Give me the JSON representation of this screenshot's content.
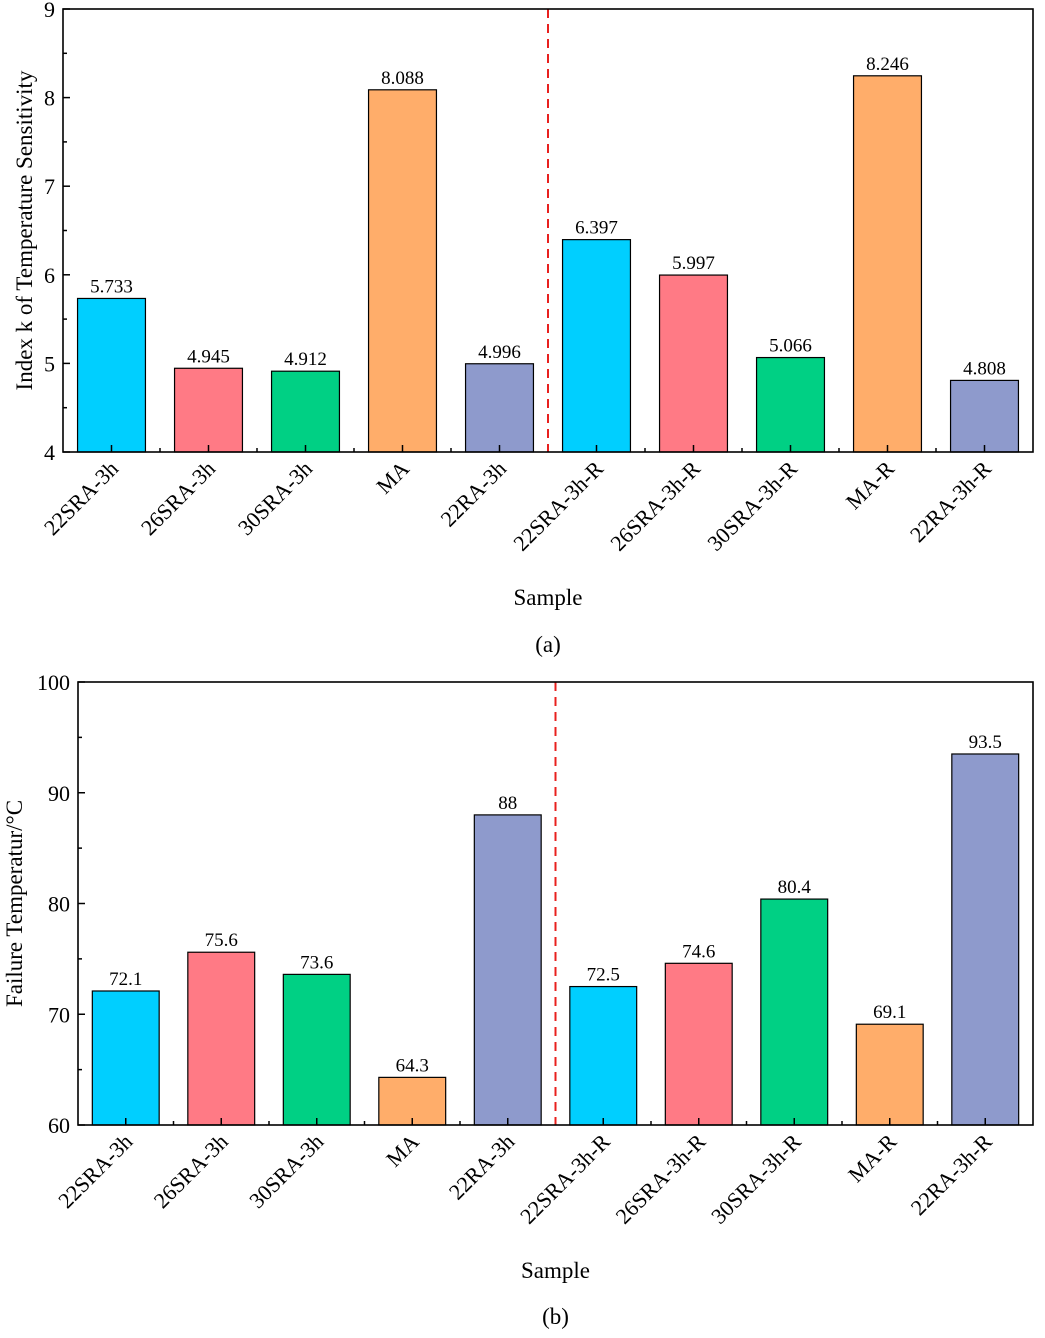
{
  "colors": {
    "cyan": "#00CFFF",
    "pink": "#FF7A85",
    "green": "#00D084",
    "orange": "#FFAD6A",
    "purple": "#8E9ACC",
    "divider": "#E8201E"
  },
  "chart_data": [
    {
      "type": "bar",
      "title": "",
      "caption": "(a)",
      "xlabel": "Sample",
      "ylabel": "Index k of Temperature Sensitivity",
      "ylim": [
        4,
        9
      ],
      "yticks": [
        4,
        5,
        6,
        7,
        8,
        9
      ],
      "categories": [
        "22SRA-3h",
        "26SRA-3h",
        "30SRA-3h",
        "MA",
        "22RA-3h",
        "22SRA-3h-R",
        "26SRA-3h-R",
        "30SRA-3h-R",
        "MA-R",
        "22RA-3h-R"
      ],
      "values": [
        5.733,
        4.945,
        4.912,
        8.088,
        4.996,
        6.397,
        5.997,
        5.066,
        8.246,
        4.808
      ],
      "value_labels": [
        "5.733",
        "4.945",
        "4.912",
        "8.088",
        "4.996",
        "6.397",
        "5.997",
        "5.066",
        "8.246",
        "4.808"
      ],
      "bar_colors": [
        "cyan",
        "pink",
        "green",
        "orange",
        "purple",
        "cyan",
        "pink",
        "green",
        "orange",
        "purple"
      ],
      "divider_after_index": 4,
      "grid": false
    },
    {
      "type": "bar",
      "title": "",
      "caption": "(b)",
      "xlabel": "Sample",
      "ylabel": "Failure Temperatur/°C",
      "ylim": [
        60,
        100
      ],
      "yticks": [
        60,
        70,
        80,
        90,
        100
      ],
      "categories": [
        "22SRA-3h",
        "26SRA-3h",
        "30SRA-3h",
        "MA",
        "22RA-3h",
        "22SRA-3h-R",
        "26SRA-3h-R",
        "30SRA-3h-R",
        "MA-R",
        "22RA-3h-R"
      ],
      "values": [
        72.1,
        75.6,
        73.6,
        64.3,
        88,
        72.5,
        74.6,
        80.4,
        69.1,
        93.5
      ],
      "value_labels": [
        "72.1",
        "75.6",
        "73.6",
        "64.3",
        "88",
        "72.5",
        "74.6",
        "80.4",
        "69.1",
        "93.5"
      ],
      "bar_colors": [
        "cyan",
        "pink",
        "green",
        "orange",
        "purple",
        "cyan",
        "pink",
        "green",
        "orange",
        "purple"
      ],
      "divider_after_index": 4,
      "grid": false
    }
  ]
}
